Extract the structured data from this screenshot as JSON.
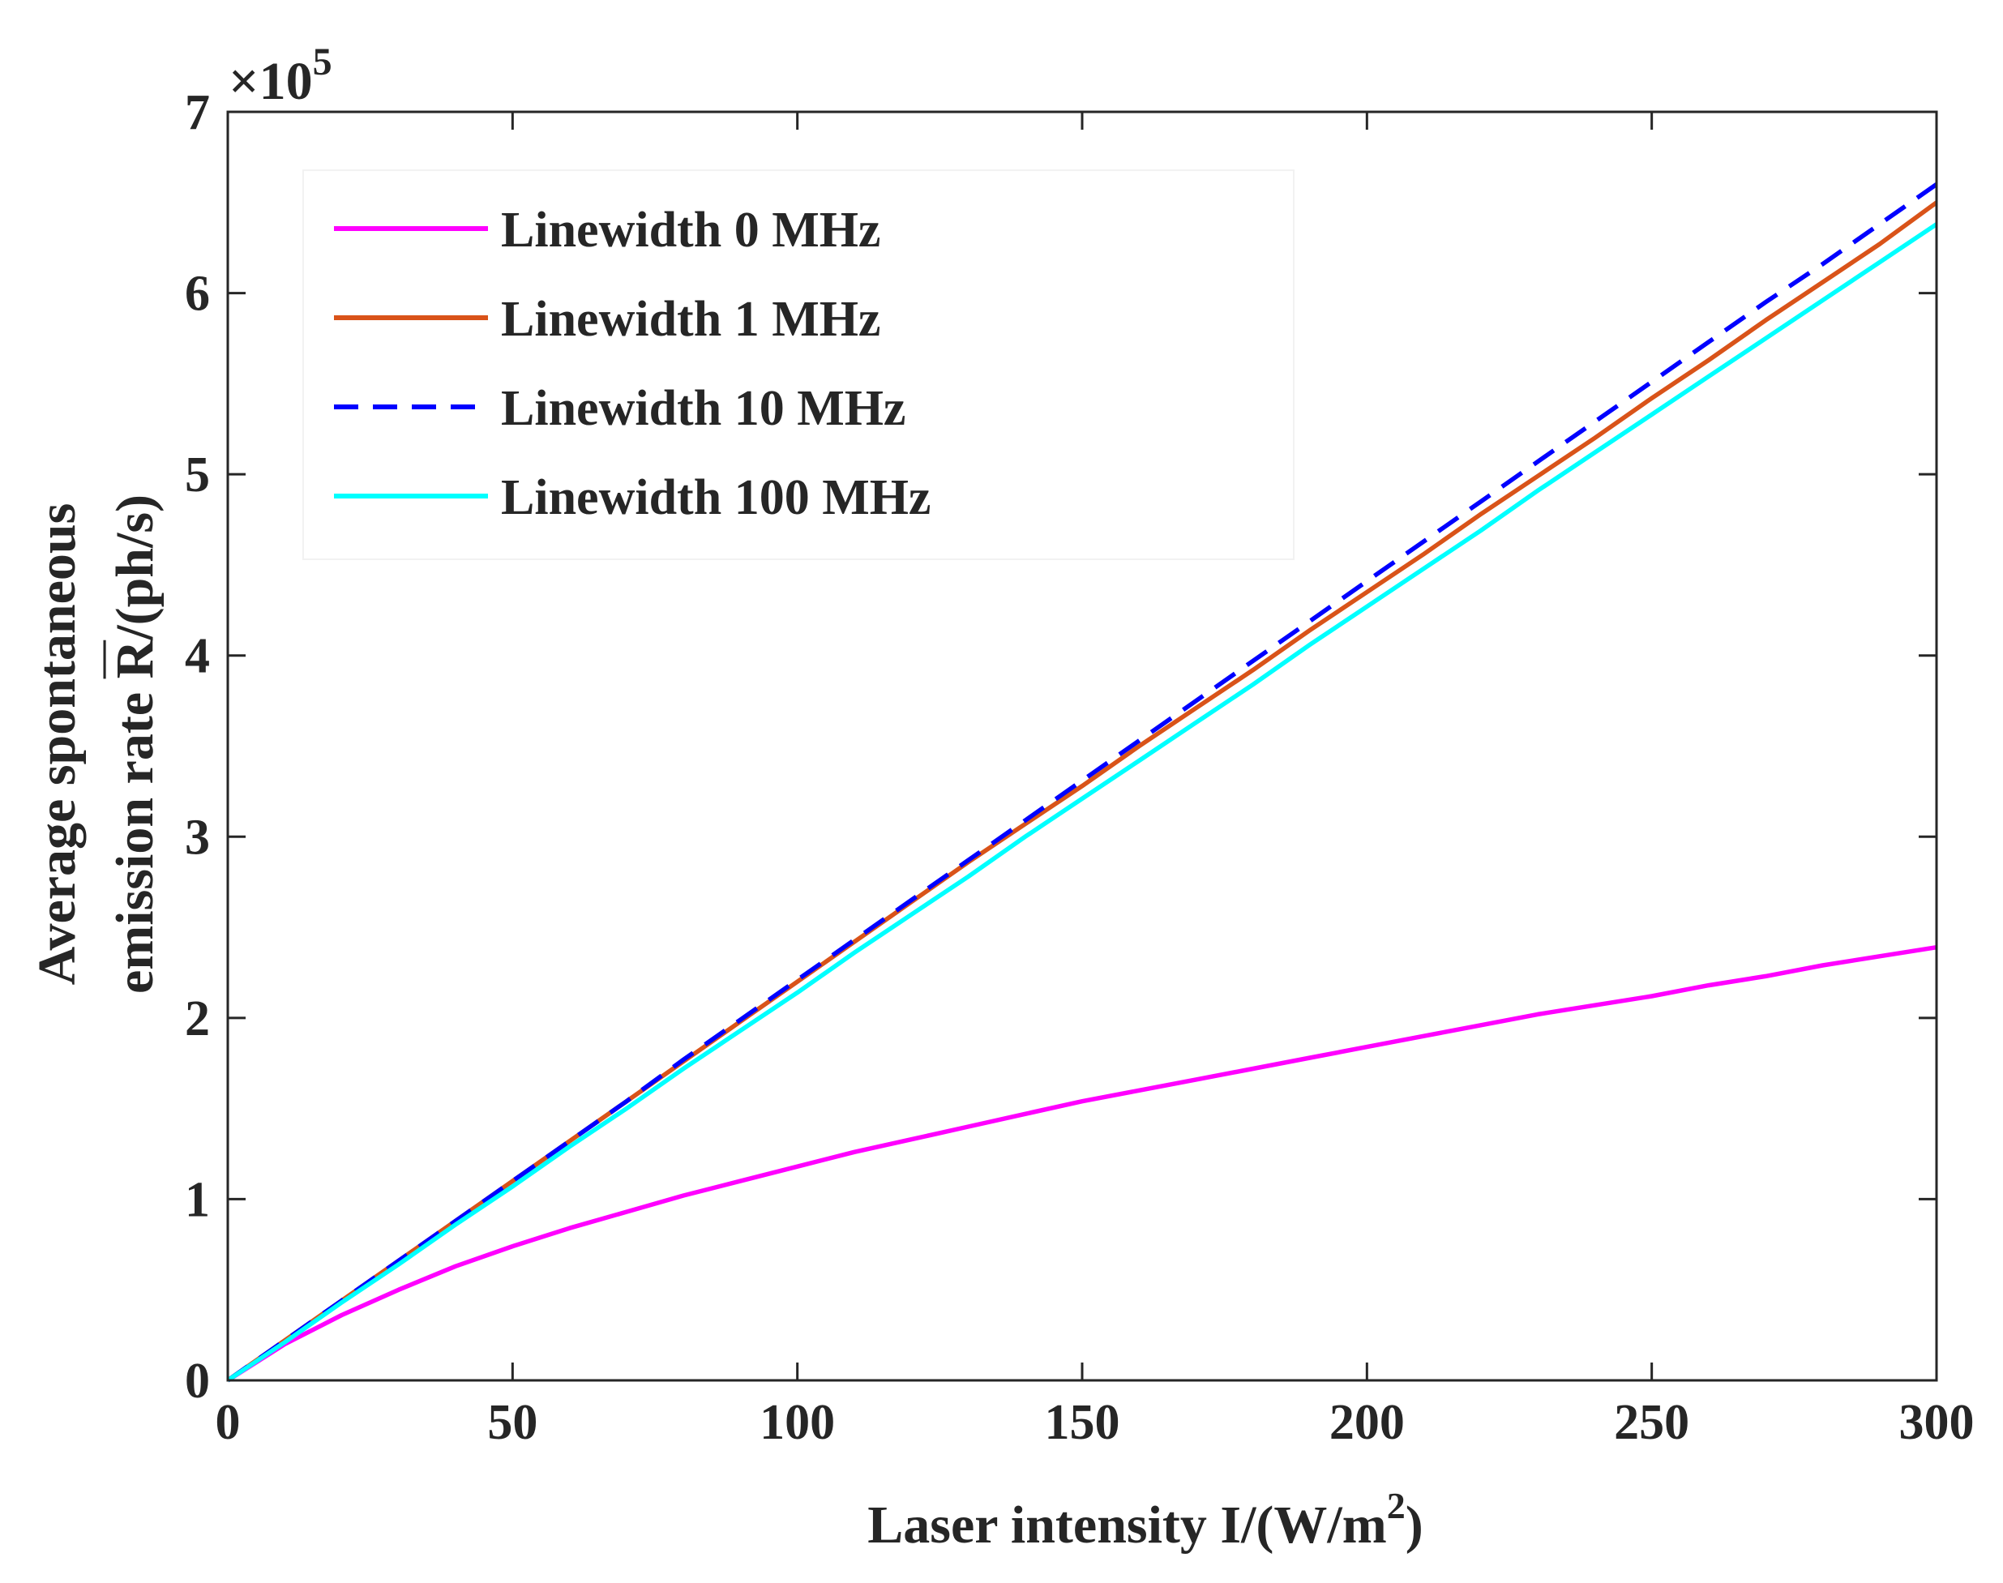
{
  "chart_data": {
    "type": "line",
    "title": "",
    "xlabel": "Laser intensity I/(W/m2)",
    "xlabel_parts": {
      "main": "Laser intensity I/(W/m",
      "sup": "2",
      "tail": ")"
    },
    "ylabel_line1": "Average spontaneous",
    "ylabel_line2_prefix": "emission rate ",
    "ylabel_line2_symbol": "R",
    "ylabel_line2_suffix": "/(ph/s)",
    "y_multiplier": {
      "times": "×10",
      "exp": "5"
    },
    "xlim": [
      0,
      300
    ],
    "ylim": [
      0,
      7
    ],
    "xticks": [
      0,
      50,
      100,
      150,
      200,
      250,
      300
    ],
    "yticks": [
      0,
      1,
      2,
      3,
      4,
      5,
      6,
      7
    ],
    "legend_position": "top-left",
    "grid": false,
    "series": [
      {
        "name": "Linewidth 0 MHz",
        "color": "#ff00ff",
        "dash": "solid",
        "x": [
          0,
          10,
          20,
          30,
          40,
          50,
          60,
          70,
          80,
          90,
          100,
          110,
          120,
          130,
          140,
          150,
          160,
          170,
          180,
          190,
          200,
          210,
          220,
          230,
          240,
          250,
          260,
          270,
          280,
          290,
          300
        ],
        "values": [
          0,
          0.2,
          0.36,
          0.5,
          0.63,
          0.74,
          0.84,
          0.93,
          1.02,
          1.1,
          1.18,
          1.26,
          1.33,
          1.4,
          1.47,
          1.54,
          1.6,
          1.66,
          1.72,
          1.78,
          1.84,
          1.9,
          1.96,
          2.02,
          2.07,
          2.12,
          2.18,
          2.23,
          2.29,
          2.34,
          2.39
        ]
      },
      {
        "name": "Linewidth 1 MHz",
        "color": "#d95319",
        "dash": "solid",
        "x": [
          0,
          10,
          20,
          30,
          40,
          50,
          60,
          70,
          80,
          90,
          100,
          110,
          120,
          130,
          140,
          150,
          160,
          170,
          180,
          190,
          200,
          210,
          220,
          230,
          240,
          250,
          260,
          270,
          280,
          290,
          300
        ],
        "values": [
          0,
          0.22,
          0.44,
          0.66,
          0.88,
          1.1,
          1.32,
          1.54,
          1.76,
          1.98,
          2.2,
          2.42,
          2.64,
          2.86,
          3.07,
          3.28,
          3.5,
          3.71,
          3.92,
          4.14,
          4.35,
          4.56,
          4.78,
          4.99,
          5.2,
          5.42,
          5.63,
          5.85,
          6.06,
          6.27,
          6.5
        ]
      },
      {
        "name": "Linewidth 10 MHz",
        "color": "#0000ff",
        "dash": "dashed",
        "x": [
          0,
          10,
          20,
          30,
          40,
          50,
          60,
          70,
          80,
          90,
          100,
          110,
          120,
          130,
          140,
          150,
          160,
          170,
          180,
          190,
          200,
          210,
          220,
          230,
          240,
          250,
          260,
          270,
          280,
          290,
          300
        ],
        "values": [
          0,
          0.22,
          0.44,
          0.66,
          0.88,
          1.1,
          1.32,
          1.54,
          1.77,
          1.99,
          2.21,
          2.43,
          2.65,
          2.87,
          3.09,
          3.31,
          3.53,
          3.75,
          3.97,
          4.19,
          4.41,
          4.63,
          4.85,
          5.07,
          5.29,
          5.51,
          5.73,
          5.95,
          6.16,
          6.38,
          6.6
        ]
      },
      {
        "name": "Linewidth 100 MHz",
        "color": "#00ffff",
        "dash": "solid",
        "x": [
          0,
          10,
          20,
          30,
          40,
          50,
          60,
          70,
          80,
          90,
          100,
          110,
          120,
          130,
          140,
          150,
          160,
          170,
          180,
          190,
          200,
          210,
          220,
          230,
          240,
          250,
          260,
          270,
          280,
          290,
          300
        ],
        "values": [
          0,
          0.21,
          0.43,
          0.64,
          0.86,
          1.07,
          1.29,
          1.5,
          1.72,
          1.93,
          2.14,
          2.36,
          2.57,
          2.78,
          3.0,
          3.21,
          3.42,
          3.63,
          3.84,
          4.06,
          4.27,
          4.48,
          4.69,
          4.91,
          5.12,
          5.33,
          5.54,
          5.75,
          5.96,
          6.17,
          6.38
        ]
      }
    ]
  }
}
